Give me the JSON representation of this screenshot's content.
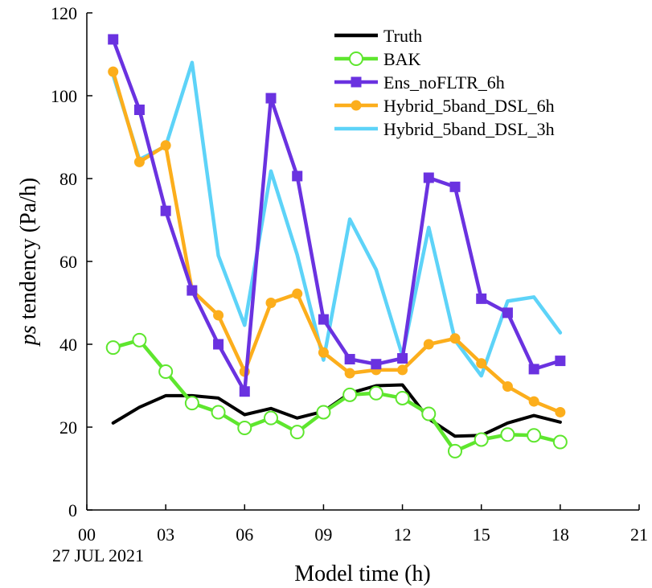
{
  "chart_data": {
    "type": "line",
    "title": "",
    "xlabel": "Model time (h)",
    "ylabel_italic": "ps",
    "ylabel_rest": " tendency (Pa/h)",
    "date_label": "27 JUL 2021",
    "xlim": [
      0,
      21
    ],
    "ylim": [
      0,
      120
    ],
    "x_ticks": [
      0,
      3,
      6,
      9,
      12,
      15,
      18,
      21
    ],
    "x_tick_labels": [
      "00",
      "03",
      "06",
      "09",
      "12",
      "15",
      "18",
      "21"
    ],
    "y_ticks": [
      0,
      20,
      40,
      60,
      80,
      100,
      120
    ],
    "y_tick_labels": [
      "0",
      "20",
      "40",
      "60",
      "80",
      "100",
      "120"
    ],
    "legend_position": "top-right",
    "grid": false,
    "x": [
      1,
      2,
      3,
      4,
      5,
      6,
      7,
      8,
      9,
      10,
      11,
      12,
      13,
      14,
      15,
      16,
      17,
      18
    ],
    "series": [
      {
        "name": "Truth",
        "color": "#000000",
        "marker": "none",
        "values": [
          21,
          24.8,
          27.6,
          27.6,
          27,
          23,
          24.5,
          22.2,
          23.8,
          28.2,
          30,
          30.2,
          22,
          17.8,
          18,
          21,
          22.8,
          21.2
        ]
      },
      {
        "name": "BAK",
        "color": "#5ee62e",
        "marker": "open-circle",
        "values": [
          39.2,
          41,
          33.4,
          25.8,
          23.6,
          19.8,
          22.2,
          18.8,
          23.6,
          27.8,
          28.2,
          27,
          23.2,
          14.2,
          17,
          18.2,
          18,
          16.4
        ]
      },
      {
        "name": "Ens_noFLTR_6h",
        "color": "#6a32e0",
        "marker": "square",
        "values": [
          113.6,
          96.6,
          72.2,
          53,
          40,
          28.6,
          99.4,
          80.6,
          46,
          36.4,
          35.2,
          36.6,
          80.2,
          78,
          51,
          47.6,
          34,
          36
        ]
      },
      {
        "name": "Hybrid_5band_DSL_6h",
        "color": "#fcae1c",
        "marker": "filled-circle",
        "values": [
          105.8,
          84,
          88,
          53,
          47,
          33.4,
          50,
          52.2,
          38,
          33,
          33.8,
          33.8,
          40,
          41.4,
          35.4,
          29.8,
          26.2,
          23.6
        ]
      },
      {
        "name": "Hybrid_5band_DSL_3h",
        "color": "#5dd3f8",
        "marker": "none",
        "values": [
          105,
          84.6,
          87.8,
          108,
          61.4,
          44.6,
          81.8,
          61.6,
          36.2,
          70.2,
          58,
          37.2,
          68.2,
          41,
          32.4,
          50.4,
          51.4,
          42.8
        ]
      }
    ]
  }
}
